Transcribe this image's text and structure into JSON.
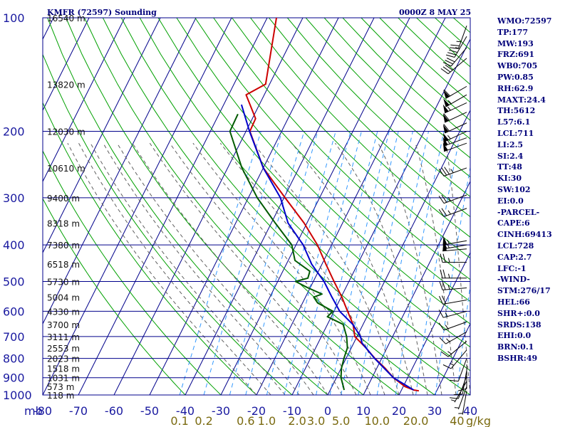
{
  "header": {
    "title": "KMFR (72597) Sounding",
    "time": "0000Z  8 MAY 25"
  },
  "colors": {
    "background": "#ffffff",
    "isobar": "#00008b",
    "isotherm": "#00008b",
    "dry_adiabat": "#00a000",
    "moist_adiabat": "#606060",
    "mixing_ratio": "#3399ff",
    "temperature": "#cc0000",
    "dewpoint": "#005a00",
    "parcel": "#0000cc",
    "wind_barb": "#000000",
    "stats_text": "#00007a"
  },
  "chart_data": {
    "type": "skew-t log-p sounding",
    "pressure_axis": {
      "unit": "mb",
      "scale": "log",
      "range": [
        100,
        1000
      ],
      "ticks": [
        100,
        200,
        300,
        400,
        500,
        600,
        700,
        800,
        900,
        1000
      ]
    },
    "temperature_axis": {
      "unit": "C",
      "range": [
        -80,
        40
      ],
      "ticks": [
        -80,
        -70,
        -60,
        -50,
        -40,
        -30,
        -20,
        -10,
        0,
        10,
        20,
        30,
        40
      ]
    },
    "tick_labels": {
      "pressure": [
        "100",
        "200",
        "300",
        "400",
        "500",
        "600",
        "700",
        "800",
        "900",
        "1000"
      ],
      "temperature": [
        "-80",
        "-70",
        "-60",
        "-50",
        "-40",
        "-30",
        "-20",
        "-10",
        "0",
        "10",
        "20",
        "30",
        "40"
      ],
      "mixing_ratio": [
        "0.1",
        "0.2",
        "0.6",
        "1.0",
        "2.0",
        "3.0",
        "5.0",
        "10.0",
        "20.0",
        "40"
      ],
      "mb_unit": "mb",
      "g_kg_unit": "g/kg",
      "heights": [
        {
          "p": 100,
          "label": "16540 m"
        },
        {
          "p": 150,
          "label": "13820 m"
        },
        {
          "p": 200,
          "label": "12030 m"
        },
        {
          "p": 250,
          "label": "10610 m"
        },
        {
          "p": 300,
          "label": "9400 m"
        },
        {
          "p": 350,
          "label": "8318 m"
        },
        {
          "p": 400,
          "label": "7380 m"
        },
        {
          "p": 450,
          "label": "6518 m"
        },
        {
          "p": 500,
          "label": "5730 m"
        },
        {
          "p": 550,
          "label": "5004 m"
        },
        {
          "p": 600,
          "label": "4330 m"
        },
        {
          "p": 650,
          "label": "3700 m"
        },
        {
          "p": 700,
          "label": "3111 m"
        },
        {
          "p": 750,
          "label": "2553 m"
        },
        {
          "p": 800,
          "label": "2023 m"
        },
        {
          "p": 850,
          "label": "1518 m"
        },
        {
          "p": 900,
          "label": "1031 m"
        },
        {
          "p": 950,
          "label": "573 m"
        },
        {
          "p": 1000,
          "label": "118 m"
        }
      ]
    },
    "mixing_ratio_values": [
      0.1,
      0.2,
      0.6,
      1.0,
      2.0,
      3.0,
      5.0,
      10.0,
      20.0,
      40.0
    ],
    "series": [
      {
        "name": "",
        "kind": "temperature",
        "points": [
          [
            100,
            -67.4
          ],
          [
            150,
            -61.1
          ],
          [
            160,
            -65.1
          ],
          [
            185,
            -59.1
          ],
          [
            200,
            -58.9
          ],
          [
            250,
            -50.0
          ],
          [
            300,
            -39.7
          ],
          [
            350,
            -30.8
          ],
          [
            400,
            -24.0
          ],
          [
            450,
            -18.9
          ],
          [
            500,
            -14.2
          ],
          [
            550,
            -9.8
          ],
          [
            600,
            -6.2
          ],
          [
            650,
            -2.8
          ],
          [
            700,
            -0.6
          ],
          [
            750,
            4.1
          ],
          [
            800,
            8.1
          ],
          [
            850,
            12.4
          ],
          [
            900,
            16.0
          ],
          [
            950,
            20.5
          ],
          [
            970,
            23.4
          ],
          [
            975,
            25.0
          ]
        ]
      },
      {
        "name": "",
        "kind": "dewpoint",
        "points": [
          [
            180,
            -64.7
          ],
          [
            200,
            -64.5
          ],
          [
            250,
            -56.0
          ],
          [
            300,
            -47.5
          ],
          [
            350,
            -38.9
          ],
          [
            400,
            -31.2
          ],
          [
            440,
            -28.1
          ],
          [
            470,
            -22.4
          ],
          [
            490,
            -22.0
          ],
          [
            500,
            -25.0
          ],
          [
            520,
            -20.6
          ],
          [
            540,
            -15.8
          ],
          [
            550,
            -17.7
          ],
          [
            570,
            -15.8
          ],
          [
            600,
            -10.3
          ],
          [
            620,
            -11.1
          ],
          [
            650,
            -5.6
          ],
          [
            700,
            -2.9
          ],
          [
            750,
            -1.1
          ],
          [
            800,
            -0.6
          ],
          [
            850,
            0.1
          ],
          [
            900,
            1.3
          ],
          [
            950,
            3.2
          ],
          [
            970,
            3.9
          ]
        ]
      },
      {
        "name": "",
        "kind": "parcel",
        "points": [
          [
            970,
            23.4
          ],
          [
            900,
            16.0
          ],
          [
            800,
            8.0
          ],
          [
            728,
            2.3
          ],
          [
            700,
            1.0
          ],
          [
            650,
            -2.9
          ],
          [
            600,
            -8.4
          ],
          [
            550,
            -12.6
          ],
          [
            500,
            -17.0
          ],
          [
            450,
            -22.9
          ],
          [
            400,
            -28.0
          ],
          [
            350,
            -35.3
          ],
          [
            300,
            -41.0
          ],
          [
            250,
            -50.0
          ],
          [
            200,
            -59.0
          ],
          [
            170,
            -65.0
          ]
        ]
      }
    ],
    "wind_barbs": [
      {
        "p": 105,
        "dir": 200,
        "spd": 25
      },
      {
        "p": 112,
        "dir": 210,
        "spd": 35
      },
      {
        "p": 120,
        "dir": 220,
        "spd": 30
      },
      {
        "p": 128,
        "dir": 230,
        "spd": 30
      },
      {
        "p": 152,
        "dir": 240,
        "spd": 60
      },
      {
        "p": 160,
        "dir": 240,
        "spd": 55
      },
      {
        "p": 168,
        "dir": 245,
        "spd": 55
      },
      {
        "p": 178,
        "dir": 245,
        "spd": 60
      },
      {
        "p": 190,
        "dir": 245,
        "spd": 60
      },
      {
        "p": 200,
        "dir": 245,
        "spd": 55
      },
      {
        "p": 208,
        "dir": 250,
        "spd": 55
      },
      {
        "p": 215,
        "dir": 250,
        "spd": 50
      },
      {
        "p": 250,
        "dir": 250,
        "spd": 35
      },
      {
        "p": 295,
        "dir": 250,
        "spd": 25
      },
      {
        "p": 320,
        "dir": 250,
        "spd": 25
      },
      {
        "p": 390,
        "dir": 260,
        "spd": 55
      },
      {
        "p": 400,
        "dir": 260,
        "spd": 55
      },
      {
        "p": 410,
        "dir": 265,
        "spd": 50
      },
      {
        "p": 445,
        "dir": 270,
        "spd": 25
      },
      {
        "p": 490,
        "dir": 270,
        "spd": 25
      },
      {
        "p": 520,
        "dir": 265,
        "spd": 25
      },
      {
        "p": 560,
        "dir": 260,
        "spd": 20
      },
      {
        "p": 600,
        "dir": 255,
        "spd": 15
      },
      {
        "p": 640,
        "dir": 250,
        "spd": 15
      },
      {
        "p": 680,
        "dir": 240,
        "spd": 15
      },
      {
        "p": 720,
        "dir": 230,
        "spd": 15
      },
      {
        "p": 760,
        "dir": 220,
        "spd": 15
      },
      {
        "p": 800,
        "dir": 200,
        "spd": 10
      },
      {
        "p": 830,
        "dir": 180,
        "spd": 10
      },
      {
        "p": 860,
        "dir": 190,
        "spd": 10
      },
      {
        "p": 890,
        "dir": 200,
        "spd": 10
      },
      {
        "p": 920,
        "dir": 210,
        "spd": 5
      },
      {
        "p": 950,
        "dir": 200,
        "spd": 5
      },
      {
        "p": 975,
        "dir": 190,
        "spd": 5
      }
    ]
  },
  "stats": [
    "WMO:72597",
    "TP:177",
    "MW:193",
    "FRZ:691",
    "WB0:705",
    "PW:0.85",
    "RH:62.9",
    "MAXT:24.4",
    "TH:5612",
    "L57:6.1",
    "LCL:711",
    "LI:2.5",
    "SI:2.4",
    "TT:48",
    "KI:30",
    "SW:102",
    "EI:0.0",
    "-PARCEL-",
    "CAPE:6",
    "CINH:69413",
    "LCL:728",
    "CAP:2.7",
    "LFC:-1",
    "-WIND-",
    "STM:276/17",
    "HEL:66",
    "SHR+:0.0",
    "SRDS:138",
    "EHI:0.0",
    "BRN:0.1",
    "BSHR:49"
  ]
}
